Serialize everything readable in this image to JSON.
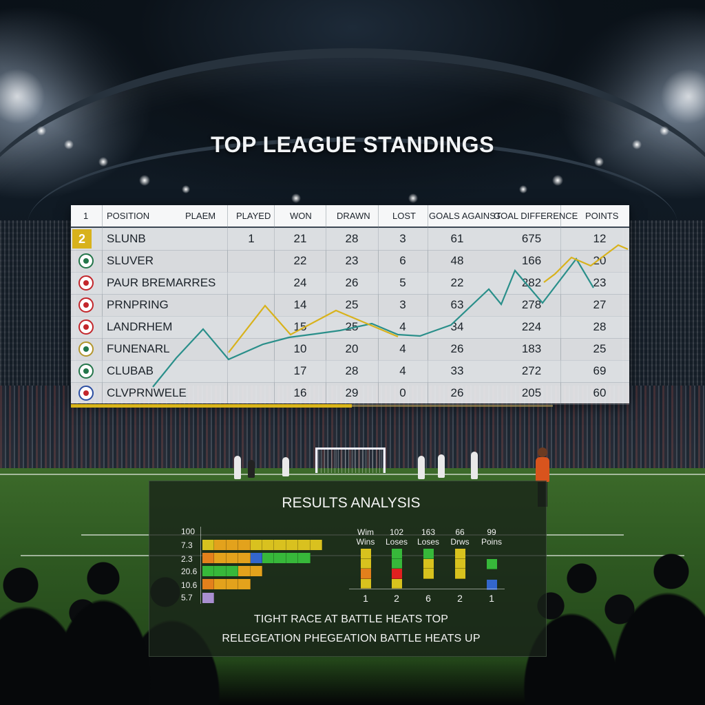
{
  "title": "TOP LEAGUE STANDINGS",
  "table": {
    "headers": {
      "rank": "1",
      "position": "POSITION",
      "plaem": "PLAEM",
      "played": "PLAYED",
      "won": "WON",
      "drawn": "DRAWN",
      "lost": "LOST",
      "goals_against": "GOALS AGAINST",
      "goal_difference": "GOAL DIFFERENCE",
      "points": "POINTS"
    },
    "rows": [
      {
        "rank_badge": "2",
        "crest": "none",
        "team": "SLUNB",
        "played": "1",
        "won": "21",
        "drawn": "28",
        "lost": "3",
        "goals_against": "61",
        "goal_difference": "675",
        "points": "12"
      },
      {
        "rank_badge": "",
        "crest": "green-crest",
        "team": "SLUVER",
        "played": "",
        "won": "22",
        "drawn": "23",
        "lost": "6",
        "goals_against": "48",
        "goal_difference": "166",
        "points": "20"
      },
      {
        "rank_badge": "",
        "crest": "red-crest",
        "team": "PAUR BREMARRES",
        "played": "",
        "won": "24",
        "drawn": "26",
        "lost": "5",
        "goals_against": "22",
        "goal_difference": "282",
        "points": "23"
      },
      {
        "rank_badge": "",
        "crest": "red-crest",
        "team": "PRNPRING",
        "played": "",
        "won": "14",
        "drawn": "25",
        "lost": "3",
        "goals_against": "63",
        "goal_difference": "278",
        "points": "27"
      },
      {
        "rank_badge": "",
        "crest": "red-crest",
        "team": "LANDRHEM",
        "played": "",
        "won": "15",
        "drawn": "25",
        "lost": "4",
        "goals_against": "34",
        "goal_difference": "224",
        "points": "28"
      },
      {
        "rank_badge": "",
        "crest": "gold-crest",
        "team": "FUNENARL",
        "played": "",
        "won": "10",
        "drawn": "20",
        "lost": "4",
        "goals_against": "26",
        "goal_difference": "183",
        "points": "25"
      },
      {
        "rank_badge": "",
        "crest": "green-crest",
        "team": "CLUBAB",
        "played": "",
        "won": "17",
        "drawn": "28",
        "lost": "4",
        "goals_against": "33",
        "goal_difference": "272",
        "points": "69"
      },
      {
        "rank_badge": "",
        "crest": "blue-crest",
        "team": "CLVPRNWELE",
        "played": "",
        "won": "16",
        "drawn": "29",
        "lost": "0",
        "goals_against": "26",
        "goal_difference": "205",
        "points": "60"
      }
    ]
  },
  "analysis": {
    "title": "RESULTS ANALYSIS",
    "y_labels": [
      "100",
      "7.3",
      "2.3",
      "20.6",
      "10.6",
      "5.7"
    ],
    "stacked_bars": [
      {
        "segments": [
          {
            "color": "#d8c21e",
            "count": 1
          },
          {
            "color": "#e3a21c",
            "count": 3
          },
          {
            "color": "#d9c11f",
            "count": 6
          }
        ]
      },
      {
        "segments": [
          {
            "color": "#e3801c",
            "count": 1
          },
          {
            "color": "#e3a21c",
            "count": 3
          },
          {
            "color": "#3366cc",
            "count": 1
          },
          {
            "color": "#37b83a",
            "count": 4
          }
        ]
      },
      {
        "segments": [
          {
            "color": "#37b83a",
            "count": 3
          },
          {
            "color": "#e3a21c",
            "count": 2
          }
        ]
      },
      {
        "segments": [
          {
            "color": "#e3801c",
            "count": 1
          },
          {
            "color": "#e3a21c",
            "count": 3
          }
        ]
      },
      {
        "segments": [
          {
            "color": "#a98fd0",
            "count": 1
          }
        ]
      }
    ],
    "stats": [
      {
        "value": "Wim",
        "label": "Wins",
        "count": "1",
        "blocks": [
          "#d8c21e",
          "#d8c21e",
          "#e3801c",
          "#d8c21e"
        ]
      },
      {
        "value": "102",
        "label": "Loses",
        "count": "2",
        "blocks": [
          "#37b83a",
          "#37b83a",
          "#e02020",
          "#d8c21e"
        ]
      },
      {
        "value": "163",
        "label": "Loses",
        "count": "6",
        "blocks": [
          "#37b83a",
          "#d8c21e",
          "#d8c21e"
        ]
      },
      {
        "value": "66",
        "label": "Drws",
        "count": "2",
        "blocks": [
          "#d8c21e",
          "#d8c21e",
          "#d8c21e"
        ]
      },
      {
        "value": "99",
        "label": "Poins",
        "count": "1",
        "blocks": [
          "#37b83a",
          "#3366cc"
        ]
      }
    ],
    "headline_1": "TIGHT RACE AT BATTLE HEATS TOP",
    "headline_2": "RELEGEATION PHEGEATION BATTLE HEATS UP"
  },
  "colors": {
    "gold": "#d9b51a",
    "trend_teal": "#2a8f8a",
    "trend_yellow": "#d8b21c"
  }
}
